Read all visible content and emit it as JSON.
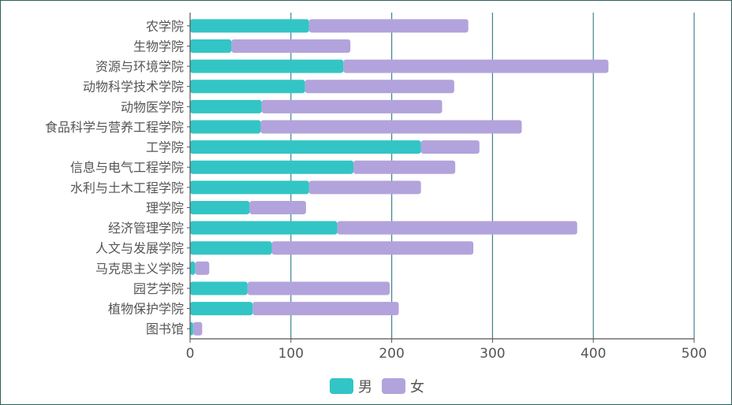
{
  "chart_data": {
    "type": "bar",
    "stacked": true,
    "orientation": "horizontal",
    "categories": [
      "农学院",
      "生物学院",
      "资源与环境学院",
      "动物科学技术学院",
      "动物医学院",
      "食品科学与营养工程学院",
      "工学院",
      "信息与电气工程学院",
      "水利与土木工程学院",
      "理学院",
      "经济管理学院",
      "人文与发展学院",
      "马克思主义学院",
      "园艺学院",
      "植物保护学院",
      "图书馆"
    ],
    "series": [
      {
        "name": "男",
        "color": "#33c5c5",
        "values": [
          118,
          41,
          152,
          114,
          71,
          70,
          229,
          162,
          118,
          59,
          146,
          81,
          5,
          57,
          62,
          3
        ]
      },
      {
        "name": "女",
        "color": "#b3a3dc",
        "values": [
          158,
          118,
          263,
          148,
          179,
          259,
          58,
          101,
          111,
          56,
          238,
          200,
          14,
          141,
          145,
          9
        ]
      }
    ],
    "xlim": [
      0,
      500
    ],
    "xticks": [
      "0",
      "100",
      "200",
      "300",
      "400",
      "500"
    ],
    "grid": true,
    "legend_position": "bottom"
  }
}
